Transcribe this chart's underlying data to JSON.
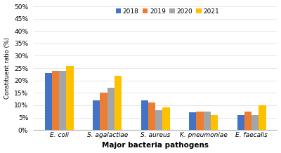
{
  "categories": [
    "E. coli",
    "S. agalactiae",
    "S. aureus",
    "K. pneumoniae",
    "E. faecalis"
  ],
  "years": [
    "2018",
    "2019",
    "2020",
    "2021"
  ],
  "values": {
    "2018": [
      23,
      12,
      12,
      7,
      6
    ],
    "2019": [
      24,
      15,
      11,
      7.5,
      7.5
    ],
    "2020": [
      24,
      17,
      8,
      7.5,
      6
    ],
    "2021": [
      26,
      22,
      9,
      6,
      10
    ]
  },
  "colors": {
    "2018": "#4472C4",
    "2019": "#ED7D31",
    "2020": "#A5A5A5",
    "2021": "#FFC000"
  },
  "ylabel": "Constituent ratio (%)",
  "xlabel": "Major bacteria pathogens",
  "ylim": [
    0,
    50
  ],
  "yticks": [
    0,
    5,
    10,
    15,
    20,
    25,
    30,
    35,
    40,
    45,
    50
  ],
  "ytick_labels": [
    "0%",
    "5%",
    "10%",
    "15%",
    "20%",
    "25%",
    "30%",
    "35%",
    "40%",
    "45%",
    "50%"
  ],
  "bar_width": 0.15,
  "figsize": [
    4.0,
    2.18
  ],
  "dpi": 100
}
